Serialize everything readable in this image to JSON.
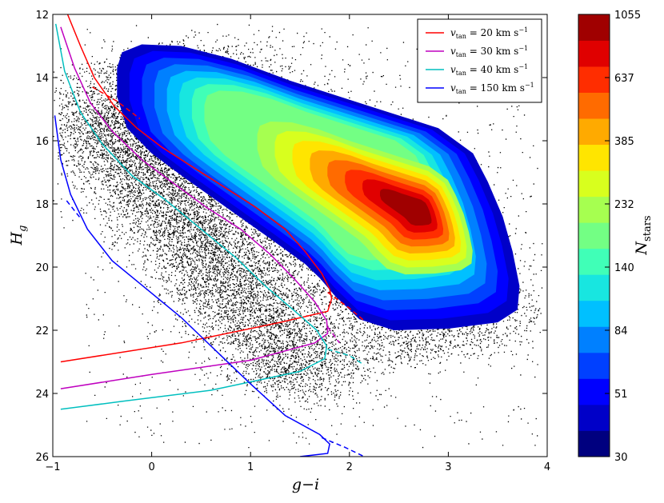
{
  "chart_data": {
    "type": "scatter",
    "xlabel": "g−i",
    "ylabel_main": "H",
    "ylabel_sub": "g",
    "xlim": [
      -1,
      4
    ],
    "ylim": [
      26,
      12
    ],
    "x_ticks": [
      "−1",
      "0",
      "1",
      "2",
      "3",
      "4"
    ],
    "x_tick_values": [
      -1,
      0,
      1,
      2,
      3,
      4
    ],
    "y_ticks": [
      "12",
      "14",
      "16",
      "18",
      "20",
      "22",
      "24",
      "26"
    ],
    "y_tick_values": [
      12,
      14,
      16,
      18,
      20,
      22,
      24,
      26
    ],
    "legend_position": "top-right",
    "series": [
      {
        "name": "v_tan = 20 km s^-1",
        "velocity": "20",
        "color": "#ff0000",
        "solid": [
          [
            -0.85,
            12
          ],
          [
            -0.72,
            13
          ],
          [
            -0.58,
            14
          ],
          [
            -0.38,
            14.9
          ],
          [
            -0.15,
            15.6
          ],
          [
            0.1,
            16.2
          ],
          [
            0.4,
            16.8
          ],
          [
            0.7,
            17.4
          ],
          [
            1.05,
            18.1
          ],
          [
            1.35,
            18.8
          ],
          [
            1.55,
            19.5
          ],
          [
            1.72,
            20.2
          ],
          [
            1.8,
            20.7
          ],
          [
            1.82,
            21.0
          ],
          [
            1.78,
            21.4
          ],
          [
            1.3,
            21.75
          ],
          [
            0.3,
            22.4
          ],
          [
            -0.92,
            23.0
          ]
        ],
        "dashed": [
          [
            -0.6,
            14.3
          ],
          [
            -0.35,
            14.75
          ],
          [
            -0.12,
            15.3
          ]
        ],
        "dashed_tail": [
          [
            1.78,
            20.8
          ],
          [
            2.0,
            21.3
          ],
          [
            2.15,
            21.7
          ]
        ]
      },
      {
        "name": "v_tan = 30 km s^-1",
        "velocity": "30",
        "color": "#bf00bf",
        "solid": [
          [
            -0.92,
            12.4
          ],
          [
            -0.78,
            13.7
          ],
          [
            -0.62,
            14.8
          ],
          [
            -0.4,
            15.7
          ],
          [
            -0.1,
            16.6
          ],
          [
            0.2,
            17.3
          ],
          [
            0.55,
            18.1
          ],
          [
            0.9,
            18.8
          ],
          [
            1.2,
            19.6
          ],
          [
            1.45,
            20.4
          ],
          [
            1.65,
            21.1
          ],
          [
            1.77,
            21.7
          ],
          [
            1.78,
            22.1
          ],
          [
            1.65,
            22.4
          ],
          [
            1.0,
            22.95
          ],
          [
            0.0,
            23.4
          ],
          [
            -0.92,
            23.85
          ]
        ],
        "dashed": [],
        "dashed_tail": [
          [
            1.78,
            21.9
          ],
          [
            1.9,
            22.4
          ]
        ]
      },
      {
        "name": "v_tan = 40 km s^-1",
        "velocity": "40",
        "color": "#00bfbf",
        "solid": [
          [
            -0.97,
            12.3
          ],
          [
            -0.88,
            13.8
          ],
          [
            -0.72,
            15.1
          ],
          [
            -0.5,
            16.1
          ],
          [
            -0.2,
            17.1
          ],
          [
            0.15,
            17.9
          ],
          [
            0.5,
            18.8
          ],
          [
            0.85,
            19.7
          ],
          [
            1.15,
            20.6
          ],
          [
            1.45,
            21.4
          ],
          [
            1.67,
            22.0
          ],
          [
            1.77,
            22.5
          ],
          [
            1.75,
            22.9
          ],
          [
            1.5,
            23.3
          ],
          [
            0.6,
            23.9
          ],
          [
            -0.3,
            24.25
          ],
          [
            -0.92,
            24.5
          ]
        ],
        "dashed": [],
        "dashed_tail": [
          [
            1.78,
            22.6
          ],
          [
            2.0,
            22.8
          ],
          [
            2.15,
            23.1
          ]
        ]
      },
      {
        "name": "v_tan = 150 km s^-1",
        "velocity": "150",
        "color": "#0000ff",
        "solid": [
          [
            -0.98,
            15.2
          ],
          [
            -0.92,
            16.6
          ],
          [
            -0.82,
            17.7
          ],
          [
            -0.65,
            18.8
          ],
          [
            -0.4,
            19.8
          ],
          [
            -0.05,
            20.7
          ],
          [
            0.3,
            21.6
          ],
          [
            0.7,
            22.8
          ],
          [
            1.0,
            23.7
          ],
          [
            1.35,
            24.7
          ],
          [
            1.7,
            25.3
          ],
          [
            1.8,
            25.6
          ],
          [
            1.78,
            25.9
          ],
          [
            1.5,
            26.0
          ]
        ],
        "dashed": [
          [
            -0.86,
            17.9
          ],
          [
            -0.72,
            18.45
          ]
        ],
        "dashed_tail": [
          [
            1.72,
            25.4
          ],
          [
            1.95,
            25.7
          ],
          [
            2.15,
            26.0
          ]
        ]
      }
    ],
    "colorbar": {
      "label_main": "N",
      "label_sub": "stars",
      "tick_labels": [
        "30",
        "51",
        "84",
        "140",
        "232",
        "385",
        "637",
        "1055"
      ],
      "levels": [
        "#00007f",
        "#0000c8",
        "#0000ff",
        "#0040ff",
        "#0080ff",
        "#00c0ff",
        "#18e6e0",
        "#40ffb7",
        "#73ff84",
        "#a6ff50",
        "#d8ff1e",
        "#ffe500",
        "#ffaa00",
        "#ff6b00",
        "#ff2d00",
        "#e00000",
        "#a00000"
      ]
    },
    "density_levels_count": 17,
    "scatter_color": "#000000",
    "density_peak": {
      "x": 2.7,
      "y": 18.2
    }
  }
}
